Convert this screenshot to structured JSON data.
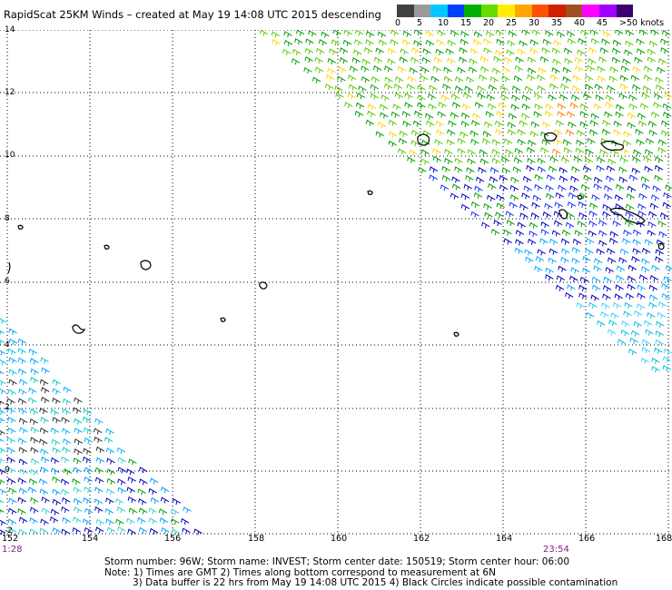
{
  "title": "RapidScat 25KM Winds – created at May 19 14:08 UTC 2015 descending",
  "legend": {
    "colors": [
      "#404040",
      "#9a9a9a",
      "#00c8ff",
      "#0040ff",
      "#00b000",
      "#66dd00",
      "#ffee00",
      "#ffa500",
      "#ff5000",
      "#d02000",
      "#a05020",
      "#ff00ff",
      "#a000ff",
      "#3a0070"
    ],
    "labels": [
      "0",
      "5",
      "10",
      "15",
      "20",
      "25",
      "30",
      "35",
      "40",
      "45",
      ">50 knots"
    ]
  },
  "axes": {
    "lat_labels": [
      "14",
      "12",
      "10",
      "8",
      "6",
      "4",
      "2",
      "0",
      "-2"
    ],
    "lon_labels": [
      "152",
      "154",
      "156",
      "158",
      "160",
      "162",
      "164",
      "166",
      "168"
    ]
  },
  "times": {
    "left": "1:28",
    "right": "23:54"
  },
  "notes": {
    "line1": "Storm number: 96W;  Storm name: INVEST;  Storm center date: 150519;  Storm center hour: 06:00",
    "line2": "Note: 1) Times are GMT  2) Times along bottom correspond to measurement at 6N",
    "line3": "3) Data buffer is 22 hrs from May 19 14:08 UTC 2015  4) Black Circles indicate possible contamination"
  }
}
